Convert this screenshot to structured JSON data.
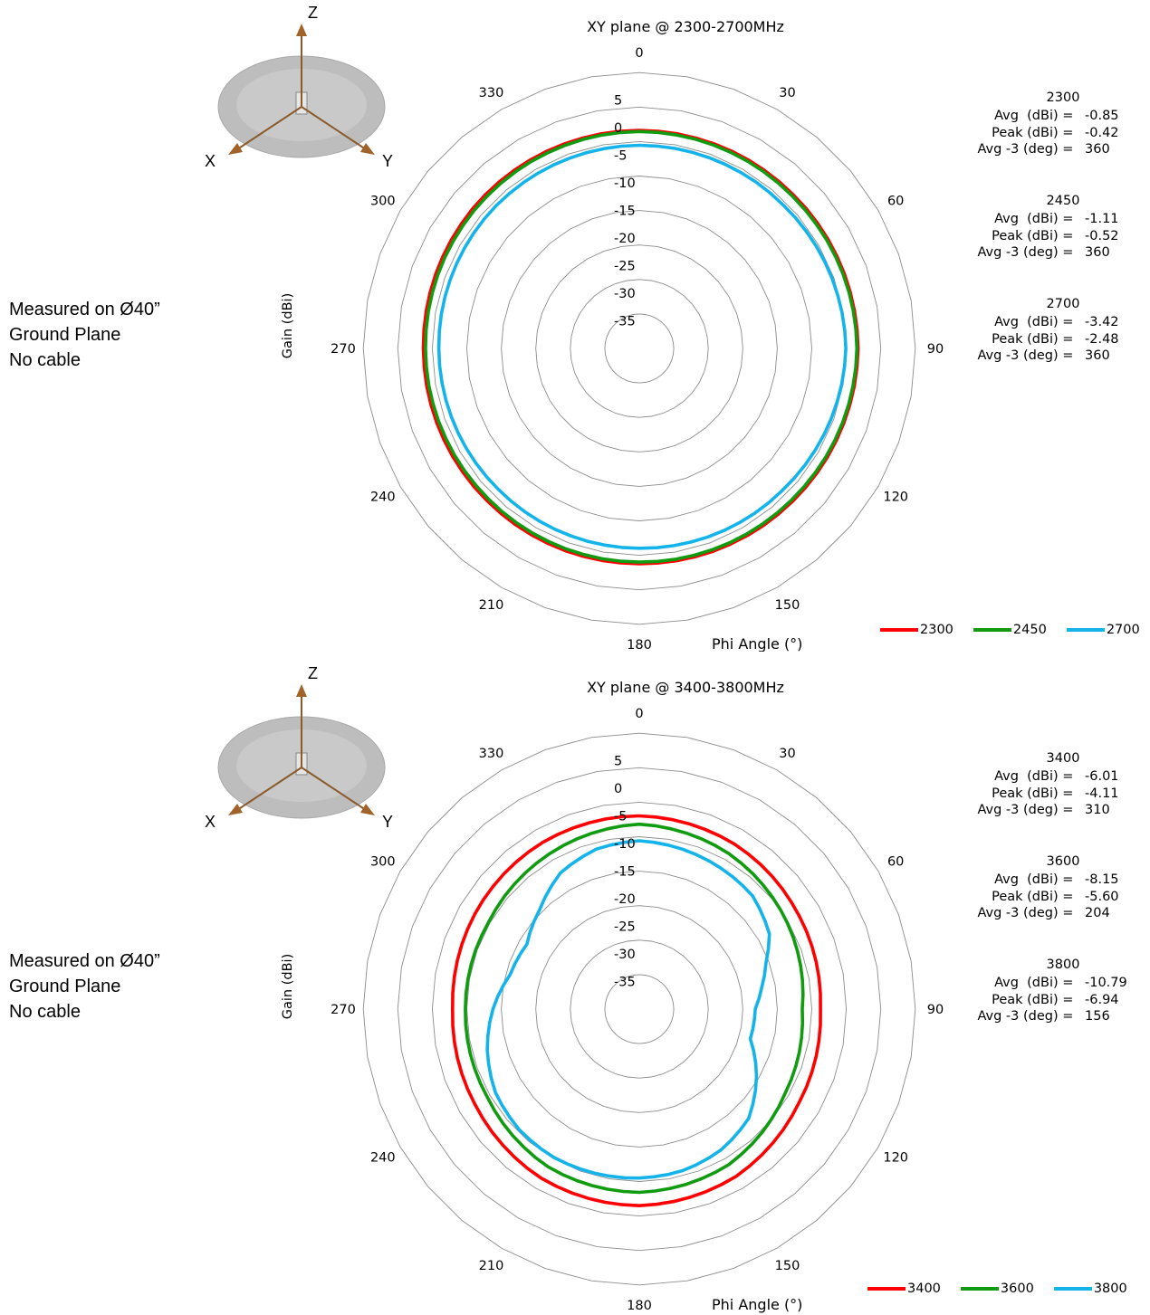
{
  "axes_icon": {
    "z_label": "Z",
    "x_label": "X",
    "y_label": "Y"
  },
  "chart_data": [
    {
      "type": "polar-line",
      "title": "XY plane @ 2300-2700MHz",
      "ylabel": "Gain (dBi)",
      "xlabel": "Phi Angle (°)",
      "radial_range": [
        -40,
        10
      ],
      "radial_ticks": [
        5,
        0,
        -5,
        -10,
        -15,
        -20,
        -25,
        -30,
        -35
      ],
      "angle_ticks": [
        0,
        30,
        60,
        90,
        120,
        150,
        180,
        210,
        240,
        270,
        300,
        330
      ],
      "grid": true,
      "legend_position": "bottom-right",
      "annotation_lines": [
        "Measured on Ø40”",
        "Ground Plane",
        "No cable"
      ],
      "stats_labels": [
        "Avg  (dBi) = ",
        "Peak (dBi) = ",
        "Avg -3 (deg) = "
      ],
      "stats": [
        {
          "freq": "2300",
          "avg": "-0.85",
          "peak": "-0.42",
          "avg3": "360"
        },
        {
          "freq": "2450",
          "avg": "-1.11",
          "peak": "-0.52",
          "avg3": "360"
        },
        {
          "freq": "2700",
          "avg": "-3.42",
          "peak": "-2.48",
          "avg3": "360"
        }
      ],
      "series": [
        {
          "name": "2300",
          "color": "#ff0000",
          "gain_points": [
            [
              0,
              -0.5
            ],
            [
              45,
              -0.6
            ],
            [
              90,
              -0.4
            ],
            [
              135,
              -0.8
            ],
            [
              180,
              -1.0
            ],
            [
              225,
              -1.0
            ],
            [
              270,
              -0.9
            ],
            [
              315,
              -0.6
            ]
          ]
        },
        {
          "name": "2450",
          "color": "#119b11",
          "gain_points": [
            [
              0,
              -0.7
            ],
            [
              45,
              -0.9
            ],
            [
              90,
              -0.6
            ],
            [
              135,
              -1.1
            ],
            [
              180,
              -1.3
            ],
            [
              225,
              -1.4
            ],
            [
              270,
              -1.3
            ],
            [
              315,
              -1.0
            ]
          ]
        },
        {
          "name": "2700",
          "color": "#14b4eb",
          "gain_points": [
            [
              0,
              -3.2
            ],
            [
              45,
              -3.2
            ],
            [
              90,
              -2.6
            ],
            [
              135,
              -3.5
            ],
            [
              180,
              -3.8
            ],
            [
              225,
              -3.9
            ],
            [
              270,
              -3.7
            ],
            [
              315,
              -3.4
            ]
          ]
        }
      ]
    },
    {
      "type": "polar-line",
      "title": "XY plane @ 3400-3800MHz",
      "ylabel": "Gain (dBi)",
      "xlabel": "Phi Angle (°)",
      "radial_range": [
        -40,
        10
      ],
      "radial_ticks": [
        5,
        0,
        -5,
        -10,
        -15,
        -20,
        -25,
        -30,
        -35
      ],
      "angle_ticks": [
        0,
        30,
        60,
        90,
        120,
        150,
        180,
        210,
        240,
        270,
        300,
        330
      ],
      "grid": true,
      "legend_position": "bottom-right",
      "annotation_lines": [
        "Measured on Ø40”",
        "Ground Plane",
        "No cable"
      ],
      "stats_labels": [
        "Avg  (dBi) = ",
        "Peak (dBi) = ",
        "Avg -3 (deg) = "
      ],
      "stats": [
        {
          "freq": "3400",
          "avg": "-6.01",
          "peak": "-4.11",
          "avg3": "310"
        },
        {
          "freq": "3600",
          "avg": "-8.15",
          "peak": "-5.60",
          "avg3": "204"
        },
        {
          "freq": "3800",
          "avg": "-10.79",
          "peak": "-6.94",
          "avg3": "156"
        }
      ],
      "series": [
        {
          "name": "3400",
          "color": "#ff0000",
          "gain_points": [
            [
              0,
              -5.0
            ],
            [
              30,
              -5.5
            ],
            [
              60,
              -6.5
            ],
            [
              90,
              -7.2
            ],
            [
              120,
              -6.5
            ],
            [
              150,
              -5.0
            ],
            [
              180,
              -4.4
            ],
            [
              210,
              -4.6
            ],
            [
              240,
              -5.6
            ],
            [
              270,
              -6.2
            ],
            [
              300,
              -5.6
            ],
            [
              330,
              -5.1
            ]
          ]
        },
        {
          "name": "3600",
          "color": "#119b11",
          "gain_points": [
            [
              0,
              -6.5
            ],
            [
              30,
              -7.5
            ],
            [
              60,
              -9.0
            ],
            [
              90,
              -10.5
            ],
            [
              120,
              -9.5
            ],
            [
              150,
              -7.5
            ],
            [
              180,
              -6.8
            ],
            [
              210,
              -7.0
            ],
            [
              240,
              -8.2
            ],
            [
              270,
              -8.5
            ],
            [
              300,
              -8.5
            ],
            [
              330,
              -7.5
            ]
          ]
        },
        {
          "name": "3800",
          "color": "#14b4eb",
          "gain_points": [
            [
              0,
              -9.5
            ],
            [
              30,
              -10.5
            ],
            [
              45,
              -11.0
            ],
            [
              60,
              -12.8
            ],
            [
              70,
              -15.6
            ],
            [
              80,
              -17.5
            ],
            [
              90,
              -19.0
            ],
            [
              105,
              -19.2
            ],
            [
              120,
              -15.5
            ],
            [
              135,
              -12.0
            ],
            [
              150,
              -10.5
            ],
            [
              165,
              -9.7
            ],
            [
              180,
              -9.4
            ],
            [
              195,
              -9.2
            ],
            [
              210,
              -9.0
            ],
            [
              225,
              -9.2
            ],
            [
              240,
              -9.9
            ],
            [
              255,
              -11.5
            ],
            [
              270,
              -13.5
            ],
            [
              285,
              -15.8
            ],
            [
              300,
              -16.5
            ],
            [
              315,
              -14.5
            ],
            [
              330,
              -11.5
            ],
            [
              345,
              -10.0
            ]
          ]
        }
      ]
    }
  ]
}
